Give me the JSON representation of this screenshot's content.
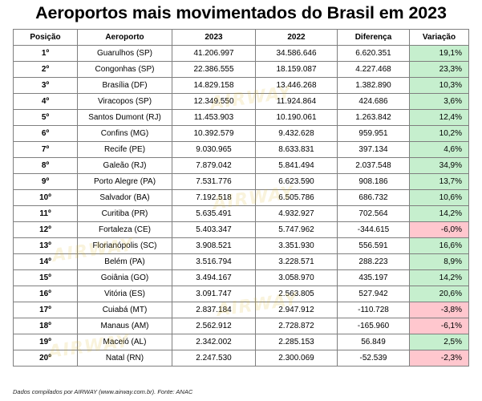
{
  "title": "Aeroportos mais movimentados do Brasil em 2023",
  "headers": [
    "Posição",
    "Aeroporto",
    "2023",
    "2022",
    "Diferença",
    "Variação"
  ],
  "rows": [
    {
      "pos": "1º",
      "airport": "Guarulhos (SP)",
      "y2023": "41.206.997",
      "y2022": "34.586.646",
      "diff": "6.620.351",
      "var": "19,1%",
      "sign": "pos"
    },
    {
      "pos": "2º",
      "airport": "Congonhas (SP)",
      "y2023": "22.386.555",
      "y2022": "18.159.087",
      "diff": "4.227.468",
      "var": "23,3%",
      "sign": "pos"
    },
    {
      "pos": "3º",
      "airport": "Brasília (DF)",
      "y2023": "14.829.158",
      "y2022": "13.446.268",
      "diff": "1.382.890",
      "var": "10,3%",
      "sign": "pos"
    },
    {
      "pos": "4º",
      "airport": "Viracopos (SP)",
      "y2023": "12.349.550",
      "y2022": "11.924.864",
      "diff": "424.686",
      "var": "3,6%",
      "sign": "pos"
    },
    {
      "pos": "5º",
      "airport": "Santos Dumont (RJ)",
      "y2023": "11.453.903",
      "y2022": "10.190.061",
      "diff": "1.263.842",
      "var": "12,4%",
      "sign": "pos"
    },
    {
      "pos": "6º",
      "airport": "Confins (MG)",
      "y2023": "10.392.579",
      "y2022": "9.432.628",
      "diff": "959.951",
      "var": "10,2%",
      "sign": "pos"
    },
    {
      "pos": "7º",
      "airport": "Recife (PE)",
      "y2023": "9.030.965",
      "y2022": "8.633.831",
      "diff": "397.134",
      "var": "4,6%",
      "sign": "pos"
    },
    {
      "pos": "8º",
      "airport": "Galeão (RJ)",
      "y2023": "7.879.042",
      "y2022": "5.841.494",
      "diff": "2.037.548",
      "var": "34,9%",
      "sign": "pos"
    },
    {
      "pos": "9º",
      "airport": "Porto Alegre (PA)",
      "y2023": "7.531.776",
      "y2022": "6.623.590",
      "diff": "908.186",
      "var": "13,7%",
      "sign": "pos"
    },
    {
      "pos": "10º",
      "airport": "Salvador (BA)",
      "y2023": "7.192.518",
      "y2022": "6.505.786",
      "diff": "686.732",
      "var": "10,6%",
      "sign": "pos"
    },
    {
      "pos": "11º",
      "airport": "Curitiba (PR)",
      "y2023": "5.635.491",
      "y2022": "4.932.927",
      "diff": "702.564",
      "var": "14,2%",
      "sign": "pos"
    },
    {
      "pos": "12º",
      "airport": "Fortaleza (CE)",
      "y2023": "5.403.347",
      "y2022": "5.747.962",
      "diff": "-344.615",
      "var": "-6,0%",
      "sign": "neg"
    },
    {
      "pos": "13º",
      "airport": "Florianópolis (SC)",
      "y2023": "3.908.521",
      "y2022": "3.351.930",
      "diff": "556.591",
      "var": "16,6%",
      "sign": "pos"
    },
    {
      "pos": "14º",
      "airport": "Belém (PA)",
      "y2023": "3.516.794",
      "y2022": "3.228.571",
      "diff": "288.223",
      "var": "8,9%",
      "sign": "pos"
    },
    {
      "pos": "15º",
      "airport": "Goiânia (GO)",
      "y2023": "3.494.167",
      "y2022": "3.058.970",
      "diff": "435.197",
      "var": "14,2%",
      "sign": "pos"
    },
    {
      "pos": "16º",
      "airport": "Vitória (ES)",
      "y2023": "3.091.747",
      "y2022": "2.563.805",
      "diff": "527.942",
      "var": "20,6%",
      "sign": "pos"
    },
    {
      "pos": "17º",
      "airport": "Cuiabá (MT)",
      "y2023": "2.837.184",
      "y2022": "2.947.912",
      "diff": "-110.728",
      "var": "-3,8%",
      "sign": "neg"
    },
    {
      "pos": "18º",
      "airport": "Manaus (AM)",
      "y2023": "2.562.912",
      "y2022": "2.728.872",
      "diff": "-165.960",
      "var": "-6,1%",
      "sign": "neg"
    },
    {
      "pos": "19º",
      "airport": "Maceió (AL)",
      "y2023": "2.342.002",
      "y2022": "2.285.153",
      "diff": "56.849",
      "var": "2,5%",
      "sign": "pos"
    },
    {
      "pos": "20º",
      "airport": "Natal (RN)",
      "y2023": "2.247.530",
      "y2022": "2.300.069",
      "diff": "-52.539",
      "var": "-2,3%",
      "sign": "neg"
    }
  ],
  "footnote": "Dados compilados por AIRWAY (www.airway.com.br). Fonte: ANAC",
  "watermark": "AIRWAY",
  "colors": {
    "positive_fill": "#c6efce",
    "negative_fill": "#ffc7ce",
    "border": "#7f7f7f"
  }
}
